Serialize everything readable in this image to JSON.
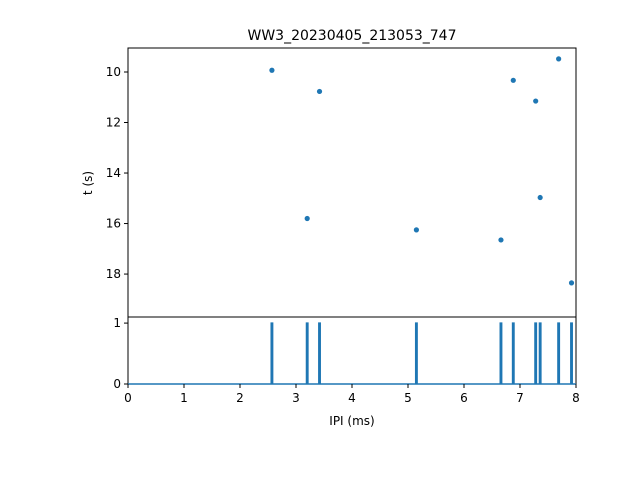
{
  "chart_data": [
    {
      "type": "scatter",
      "title": "WW3_20230405_213053_747",
      "xlabel": "",
      "ylabel": "t (s)",
      "xlim": [
        0,
        8
      ],
      "ylim": [
        19.7,
        9.05
      ],
      "y_inverted": true,
      "yticks": [
        10,
        12,
        14,
        16,
        18
      ],
      "color": "#1f77b4",
      "points": [
        {
          "x": 2.57,
          "y": 9.93
        },
        {
          "x": 3.2,
          "y": 15.8
        },
        {
          "x": 3.42,
          "y": 10.77
        },
        {
          "x": 5.15,
          "y": 16.25
        },
        {
          "x": 6.66,
          "y": 16.65
        },
        {
          "x": 6.88,
          "y": 10.33
        },
        {
          "x": 7.28,
          "y": 11.15
        },
        {
          "x": 7.36,
          "y": 14.97
        },
        {
          "x": 7.69,
          "y": 9.48
        },
        {
          "x": 7.92,
          "y": 18.35
        }
      ]
    },
    {
      "type": "line",
      "xlabel": "IPI (ms)",
      "ylabel": "",
      "xlim": [
        0,
        8
      ],
      "ylim": [
        0,
        1.1
      ],
      "xticks": [
        0,
        1,
        2,
        3,
        4,
        5,
        6,
        7,
        8
      ],
      "yticks": [
        0,
        1
      ],
      "color": "#1f77b4",
      "spikes_x": [
        2.57,
        3.2,
        3.42,
        5.15,
        6.66,
        6.88,
        7.28,
        7.36,
        7.69,
        7.92
      ],
      "spike_height": 1
    }
  ]
}
